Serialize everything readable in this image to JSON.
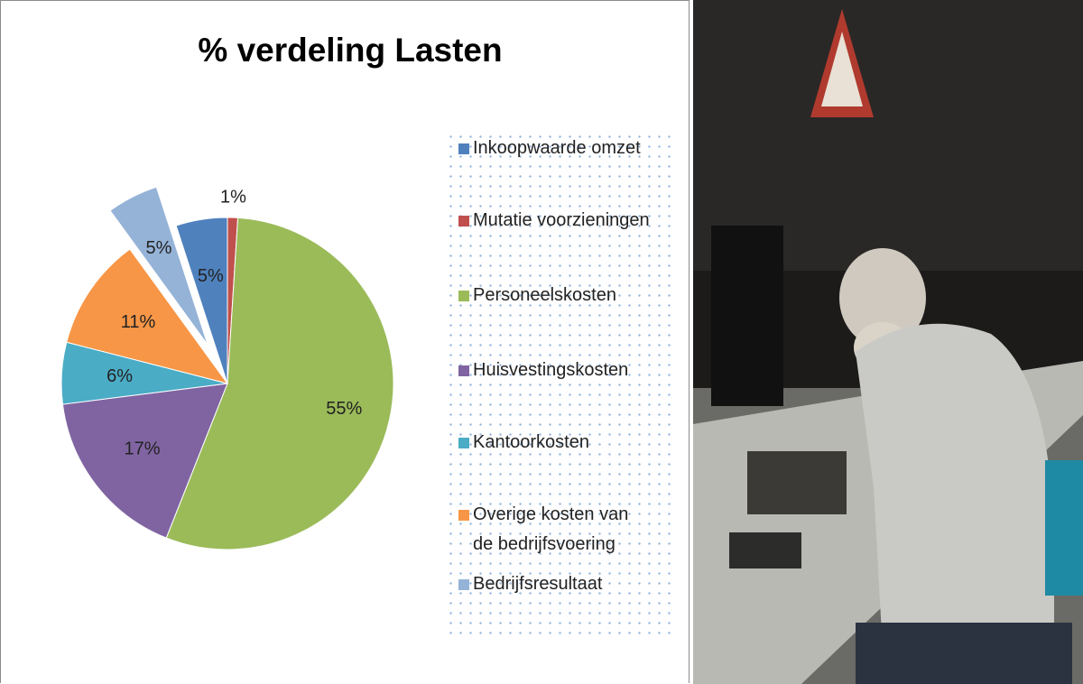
{
  "chart_data": {
    "type": "pie",
    "title": "% verdeling Lasten",
    "categories": [
      "Inkoopwaarde omzet",
      "Mutatie voorzieningen",
      "Personeelskosten",
      "Huisvestingskosten",
      "Kantoorkosten",
      "Overige kosten van de bedrijfsvoering",
      "Bedrijfsresultaat"
    ],
    "values": [
      5,
      1,
      55,
      17,
      6,
      11,
      5
    ],
    "value_labels": [
      "5%",
      "1%",
      "55%",
      "17%",
      "6%",
      "11%",
      "5%"
    ],
    "colors": [
      "#4f81bd",
      "#c0504d",
      "#9bbb59",
      "#8064a2",
      "#4bacc6",
      "#f79646",
      "#95b3d7"
    ],
    "exploded": [
      false,
      false,
      false,
      false,
      false,
      false,
      true
    ],
    "legend": "right"
  }
}
